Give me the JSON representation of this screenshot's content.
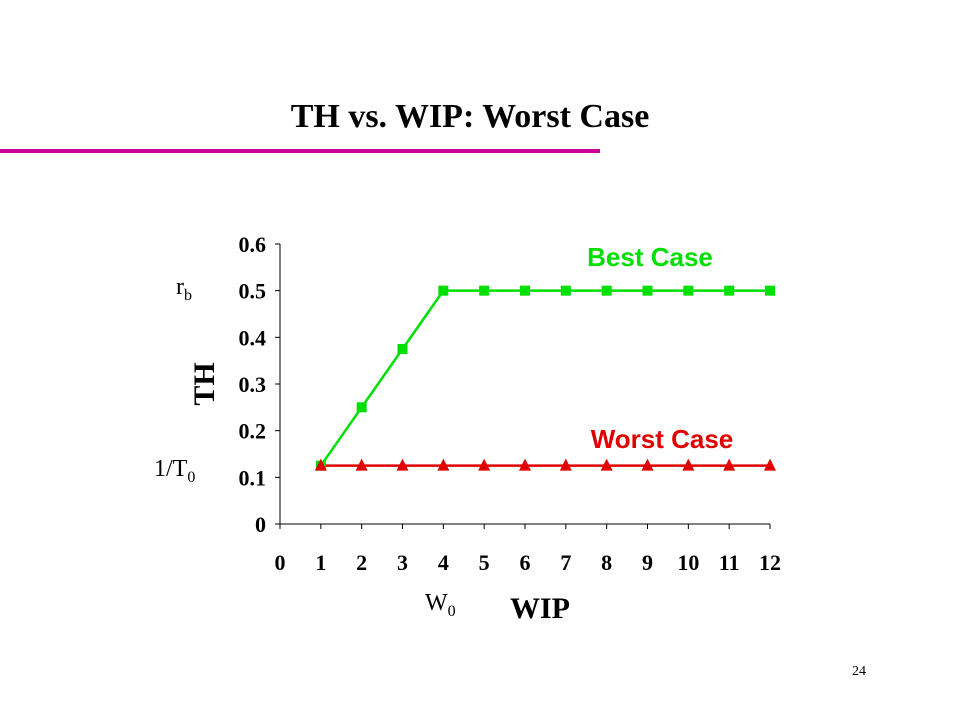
{
  "slide": {
    "title": "TH vs. WIP: Worst Case",
    "page_number": "24",
    "accent_color": "#cc0099"
  },
  "chart_data": {
    "type": "line",
    "xlabel": "WIP",
    "ylabel": "TH",
    "xlim": [
      0,
      12
    ],
    "ylim": [
      0,
      0.6
    ],
    "x_ticks": [
      "0",
      "1",
      "2",
      "3",
      "4",
      "5",
      "6",
      "7",
      "8",
      "9",
      "10",
      "11",
      "12"
    ],
    "y_ticks": [
      "0",
      "0.1",
      "0.2",
      "0.3",
      "0.4",
      "0.5",
      "0.6"
    ],
    "grid": false,
    "x": [
      1,
      2,
      3,
      4,
      5,
      6,
      7,
      8,
      9,
      10,
      11,
      12
    ],
    "series": [
      {
        "label": "Best Case",
        "color": "#00e000",
        "marker": "square",
        "values": [
          0.125,
          0.25,
          0.375,
          0.5,
          0.5,
          0.5,
          0.5,
          0.5,
          0.5,
          0.5,
          0.5,
          0.5
        ]
      },
      {
        "label": "Worst Case",
        "color": "#e00000",
        "marker": "triangle",
        "values": [
          0.125,
          0.125,
          0.125,
          0.125,
          0.125,
          0.125,
          0.125,
          0.125,
          0.125,
          0.125,
          0.125,
          0.125
        ]
      }
    ],
    "annotations": {
      "rb": {
        "main": "r",
        "sub": "b"
      },
      "inv_t0": {
        "main": "1/T",
        "sub": "0"
      },
      "w0": {
        "main": "W",
        "sub": "0"
      }
    }
  }
}
